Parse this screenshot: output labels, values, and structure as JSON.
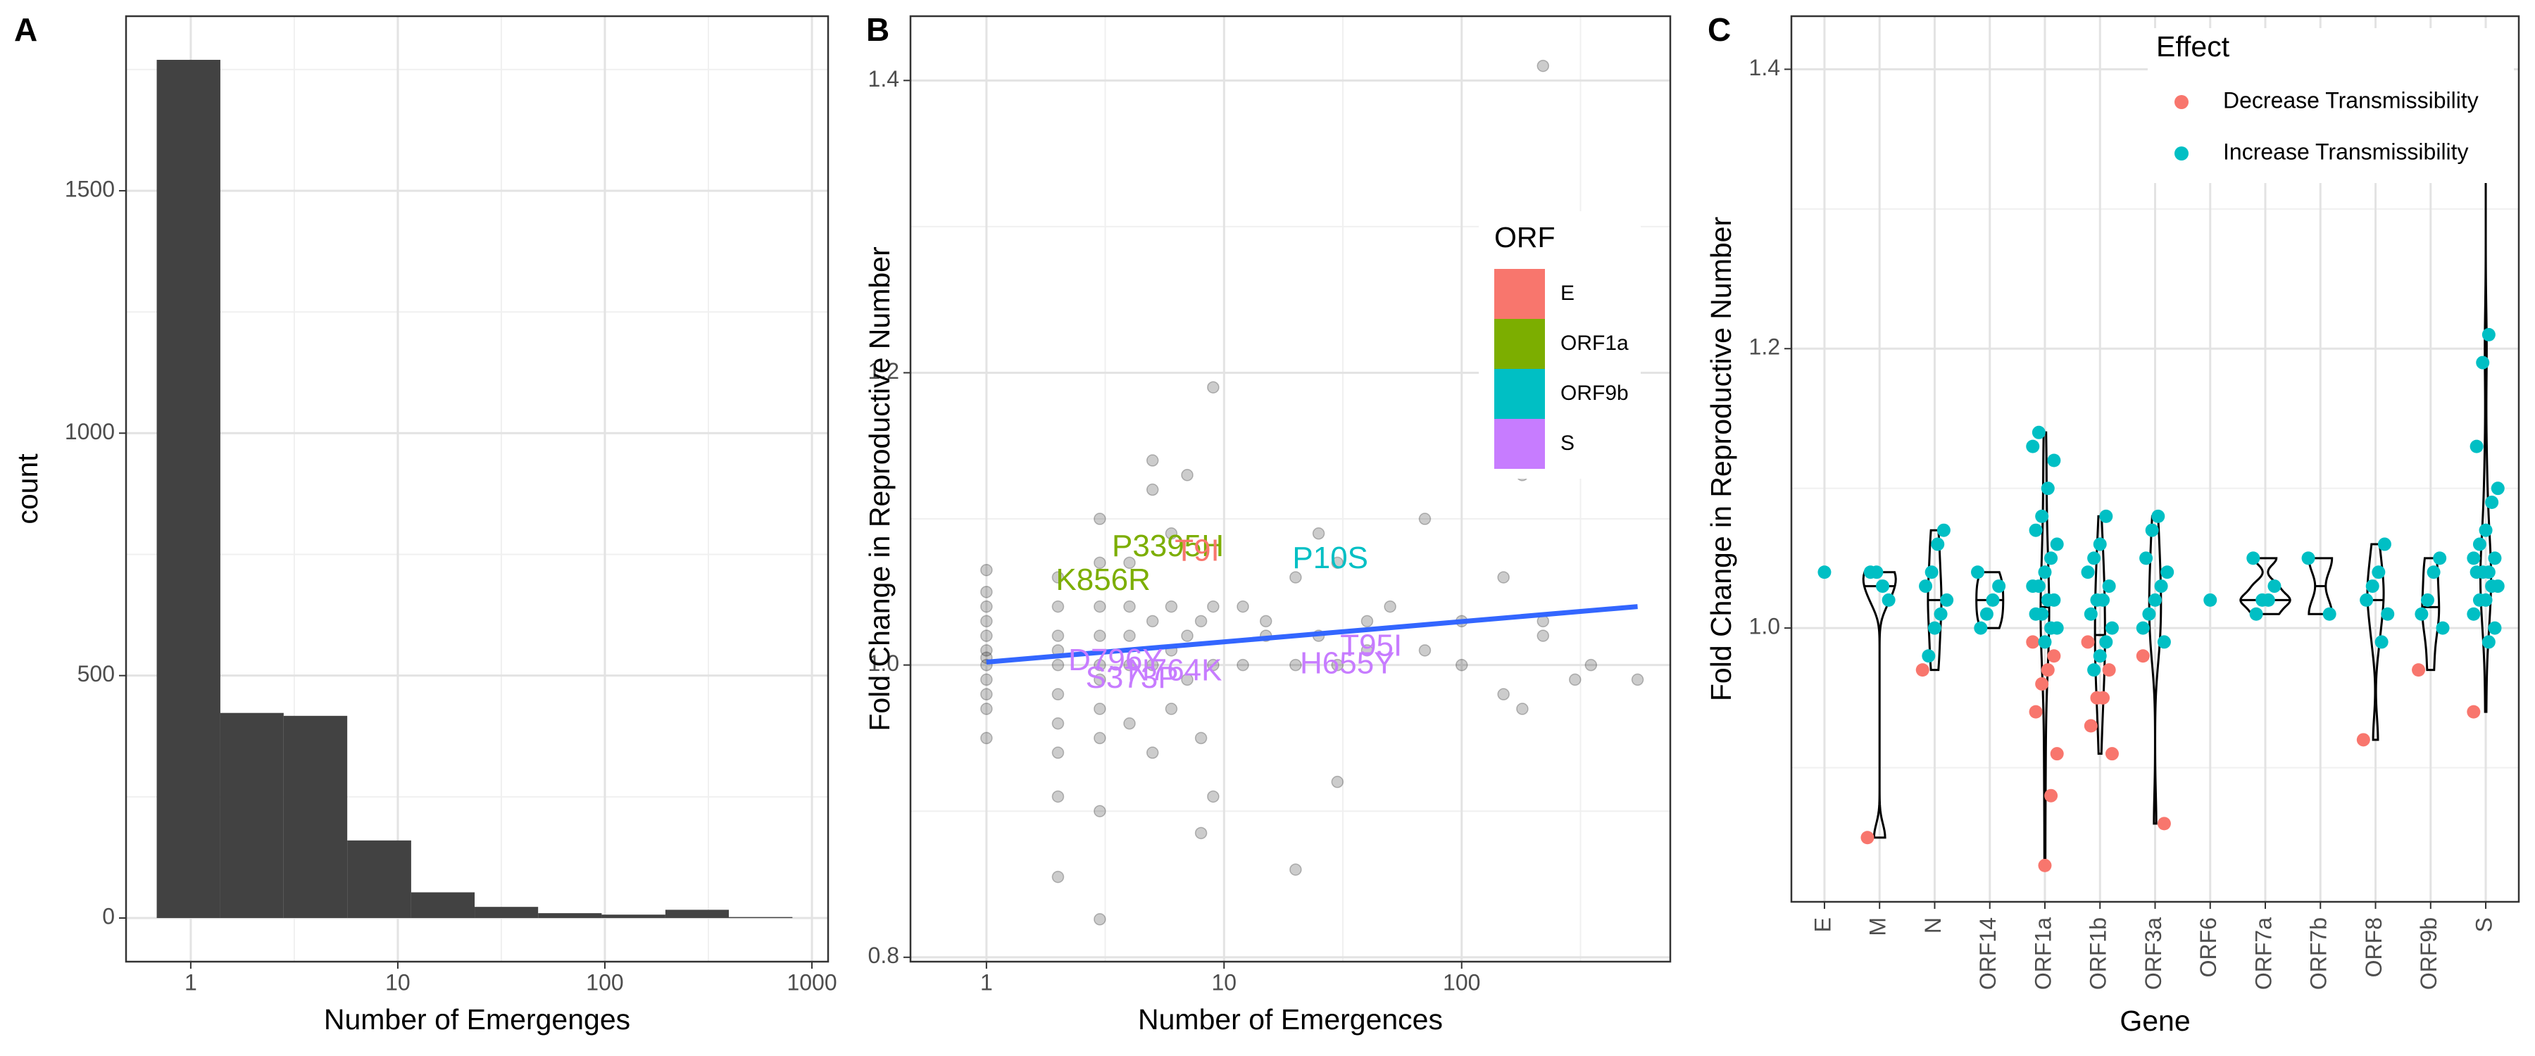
{
  "chart_data": [
    {
      "type": "histogram",
      "panel_label": "A",
      "xlabel": "Number of Emergenges",
      "ylabel": "count",
      "xscale": "log",
      "xlim": [
        0.487,
        1197
      ],
      "ylim": [
        -90,
        1860
      ],
      "xticks": [
        1,
        10,
        100,
        1000
      ],
      "yticks": [
        0,
        500,
        1000,
        1500
      ],
      "bins": [
        0.685,
        1.39,
        2.81,
        5.7,
        11.6,
        23.5,
        47.6,
        96.5,
        196,
        397,
        805
      ],
      "values": [
        1770,
        423,
        417,
        160,
        53,
        23,
        10,
        7,
        17,
        2
      ],
      "color": "#424242",
      "grid": true
    },
    {
      "type": "scatter",
      "panel_label": "B",
      "xlabel": "Number of Emergences",
      "ylabel": "Fold Change in Reproductive Number",
      "xscale": "log",
      "xlim": [
        0.479,
        755
      ],
      "ylim": [
        0.797,
        1.444
      ],
      "xticks": [
        1,
        10,
        100
      ],
      "yticks": [
        0.8,
        {
          "value": 1,
          "label": "1.0"
        },
        1.2,
        1.4
      ],
      "grid": true,
      "point_color": "#000000",
      "x": [
        1,
        1,
        1,
        1,
        1,
        1,
        1,
        1,
        1,
        1,
        1,
        1,
        2,
        2,
        2,
        2,
        2,
        2,
        2,
        2,
        2,
        2,
        3,
        3,
        3,
        3,
        3,
        3,
        3,
        3,
        3,
        3,
        4,
        4,
        4,
        4,
        4,
        5,
        5,
        5,
        5,
        5,
        6,
        6,
        6,
        6,
        7,
        7,
        7,
        8,
        8,
        8,
        9,
        9,
        9,
        9,
        12,
        12,
        15,
        15,
        20,
        20,
        20,
        25,
        25,
        30,
        30,
        30,
        40,
        40,
        50,
        70,
        70,
        100,
        100,
        150,
        150,
        180,
        180,
        180,
        220,
        220,
        220,
        300,
        350,
        550
      ],
      "y": [
        0.95,
        0.97,
        0.98,
        0.99,
        1.0,
        1.005,
        1.01,
        1.02,
        1.03,
        1.04,
        1.05,
        1.065,
        0.855,
        0.91,
        0.94,
        0.96,
        0.98,
        1.0,
        1.01,
        1.02,
        1.04,
        1.06,
        0.826,
        0.9,
        0.95,
        0.97,
        0.99,
        1.0,
        1.02,
        1.04,
        1.07,
        1.1,
        0.96,
        1.0,
        1.02,
        1.04,
        1.07,
        0.94,
        1.0,
        1.03,
        1.14,
        1.12,
        0.97,
        1.01,
        1.04,
        1.09,
        0.99,
        1.02,
        1.13,
        0.885,
        0.95,
        1.03,
        0.91,
        1.0,
        1.04,
        1.19,
        1.0,
        1.04,
        1.02,
        1.03,
        0.86,
        1.0,
        1.06,
        1.09,
        1.02,
        0.92,
        1.0,
        1.07,
        1.03,
        1.01,
        1.04,
        1.1,
        1.01,
        1.0,
        1.03,
        0.98,
        1.06,
        0.97,
        1.13,
        1.15,
        1.41,
        1.02,
        1.03,
        0.99,
        1.0,
        0.99
      ],
      "trend": {
        "x": [
          1,
          550
        ],
        "y": [
          1.002,
          1.04
        ],
        "color": "#3366FF"
      },
      "legend": {
        "title": "ORF",
        "items": [
          {
            "name": "E",
            "color": "#F8766D"
          },
          {
            "name": "ORF1a",
            "color": "#7CAE00"
          },
          {
            "name": "ORF9b",
            "color": "#00BFC4"
          },
          {
            "name": "S",
            "color": "#C77CFF"
          }
        ]
      },
      "annotations": [
        {
          "text": "P3395H",
          "x": 5.8,
          "y": 1.08,
          "orf": "ORF1a"
        },
        {
          "text": "K856R",
          "x": 3.1,
          "y": 1.057,
          "orf": "ORF1a"
        },
        {
          "text": "T9I",
          "x": 7.7,
          "y": 1.077,
          "orf": "E"
        },
        {
          "text": "P10S",
          "x": 28,
          "y": 1.072,
          "orf": "ORF9b"
        },
        {
          "text": "T95I",
          "x": 41.6,
          "y": 1.012,
          "orf": "S"
        },
        {
          "text": "H655Y",
          "x": 33,
          "y": 1.0,
          "orf": "S"
        },
        {
          "text": "D796Y",
          "x": 3.5,
          "y": 1.002,
          "orf": "S"
        },
        {
          "text": "S373P",
          "x": 4.1,
          "y": 0.99,
          "orf": "S"
        },
        {
          "text": "N764K",
          "x": 6.2,
          "y": 0.995,
          "orf": "S"
        }
      ]
    },
    {
      "type": "violin",
      "panel_label": "C",
      "xlabel": "Gene",
      "ylabel": "Fold Change in Reproductive Number",
      "categories": [
        "E",
        "M",
        "N",
        "ORF14",
        "ORF1a",
        "ORF1b",
        "ORF3a",
        "ORF6",
        "ORF7a",
        "ORF7b",
        "ORF8",
        "ORF9b",
        "S"
      ],
      "ylim": [
        0.804,
        1.438
      ],
      "yticks": [
        {
          "value": 1,
          "label": "1.0"
        },
        1.2,
        1.4
      ],
      "grid": true,
      "legend_title": "Effect",
      "series": [
        {
          "name": "Decrease Transmissibility",
          "color": "#F8766D",
          "x": [
            "M",
            "N",
            "ORF1a",
            "ORF1a",
            "ORF1a",
            "ORF1a",
            "ORF1a",
            "ORF1a",
            "ORF1a",
            "ORF1a",
            "ORF1b",
            "ORF1b",
            "ORF1b",
            "ORF1b",
            "ORF1b",
            "ORF1b",
            "ORF3a",
            "ORF3a",
            "ORF8",
            "ORF9b",
            "S"
          ],
          "values": [
            0.85,
            0.97,
            0.99,
            0.98,
            0.97,
            0.96,
            0.94,
            0.91,
            0.88,
            0.83,
            0.99,
            0.97,
            0.95,
            0.95,
            0.93,
            0.91,
            0.98,
            0.86,
            0.92,
            0.97,
            0.94
          ]
        },
        {
          "name": "Increase Transmissibility",
          "color": "#00BFC4",
          "x": [
            "E",
            "M",
            "M",
            "M",
            "M",
            "N",
            "N",
            "N",
            "N",
            "N",
            "N",
            "N",
            "N",
            "ORF14",
            "ORF14",
            "ORF14",
            "ORF14",
            "ORF14",
            "ORF1a",
            "ORF1a",
            "ORF1a",
            "ORF1a",
            "ORF1a",
            "ORF1a",
            "ORF1a",
            "ORF1a",
            "ORF1a",
            "ORF1a",
            "ORF1a",
            "ORF1a",
            "ORF1a",
            "ORF1a",
            "ORF1a",
            "ORF1a",
            "ORF1a",
            "ORF1a",
            "ORF1b",
            "ORF1b",
            "ORF1b",
            "ORF1b",
            "ORF1b",
            "ORF1b",
            "ORF1b",
            "ORF1b",
            "ORF1b",
            "ORF1b",
            "ORF1b",
            "ORF1b",
            "ORF3a",
            "ORF3a",
            "ORF3a",
            "ORF3a",
            "ORF3a",
            "ORF3a",
            "ORF3a",
            "ORF3a",
            "ORF3a",
            "ORF6",
            "ORF7a",
            "ORF7a",
            "ORF7a",
            "ORF7a",
            "ORF7a",
            "ORF7b",
            "ORF7b",
            "ORF8",
            "ORF8",
            "ORF8",
            "ORF8",
            "ORF8",
            "ORF8",
            "ORF9b",
            "ORF9b",
            "ORF9b",
            "ORF9b",
            "ORF9b",
            "S",
            "S",
            "S",
            "S",
            "S",
            "S",
            "S",
            "S",
            "S",
            "S",
            "S",
            "S",
            "S",
            "S",
            "S",
            "S",
            "S",
            "S",
            "S",
            "S"
          ],
          "values": [
            1.04,
            1.02,
            1.03,
            1.04,
            1.04,
            1.07,
            1.06,
            1.04,
            1.03,
            1.02,
            1.01,
            1.0,
            0.98,
            1.04,
            1.03,
            1.02,
            1.01,
            1.0,
            1.14,
            1.13,
            1.12,
            1.1,
            1.08,
            1.07,
            1.06,
            1.05,
            1.04,
            1.03,
            1.03,
            1.02,
            1.02,
            1.01,
            1.01,
            1.0,
            1.0,
            0.99,
            1.08,
            1.06,
            1.05,
            1.04,
            1.03,
            1.02,
            1.02,
            1.01,
            1.0,
            0.99,
            0.98,
            0.97,
            1.08,
            1.07,
            1.05,
            1.04,
            1.03,
            1.02,
            1.01,
            1.0,
            0.99,
            1.02,
            1.05,
            1.03,
            1.02,
            1.02,
            1.01,
            1.05,
            1.01,
            1.06,
            1.04,
            1.03,
            1.02,
            1.01,
            0.99,
            1.05,
            1.04,
            1.02,
            1.01,
            1.0,
            1.41,
            1.21,
            1.19,
            1.13,
            1.1,
            1.09,
            1.07,
            1.06,
            1.05,
            1.05,
            1.04,
            1.04,
            1.04,
            1.03,
            1.03,
            1.02,
            1.02,
            1.01,
            1.0,
            0.99
          ]
        }
      ]
    }
  ]
}
